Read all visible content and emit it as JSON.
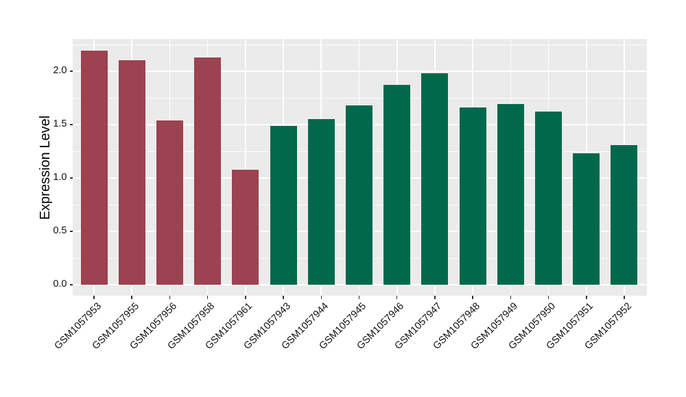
{
  "chart_data": {
    "type": "bar",
    "title": "",
    "xlabel": "",
    "ylabel": "Expression Level",
    "categories": [
      "GSM1057953",
      "GSM1057955",
      "GSM1057956",
      "GSM1057958",
      "GSM1057961",
      "GSM1057943",
      "GSM1057944",
      "GSM1057945",
      "GSM1057946",
      "GSM1057947",
      "GSM1057948",
      "GSM1057949",
      "GSM1057950",
      "GSM1057951",
      "GSM1057952"
    ],
    "values": [
      2.19,
      2.1,
      1.54,
      2.13,
      1.08,
      1.49,
      1.55,
      1.68,
      1.87,
      1.98,
      1.66,
      1.69,
      1.62,
      1.23,
      1.31
    ],
    "bar_groups": [
      "red",
      "red",
      "red",
      "red",
      "red",
      "green",
      "green",
      "green",
      "green",
      "green",
      "green",
      "green",
      "green",
      "green",
      "green"
    ],
    "group_colors": {
      "red": "#9C4250",
      "green": "#00694B"
    },
    "y_ticks": [
      "0.0",
      "0.5",
      "1.0",
      "1.5",
      "2.0"
    ],
    "y_minor_ticks": [
      0.25,
      0.75,
      1.25,
      1.75,
      2.25
    ],
    "ylim": [
      0,
      2.3
    ],
    "x_tick_angle": 45,
    "grid": "major+minor horizontal, major vertical at category centers",
    "legend_position": "none",
    "panel_background": "#EBEBEB",
    "gridline_color": "#FFFFFF",
    "tick_mark_color": "#333333",
    "axis_text_color": "#111111"
  }
}
